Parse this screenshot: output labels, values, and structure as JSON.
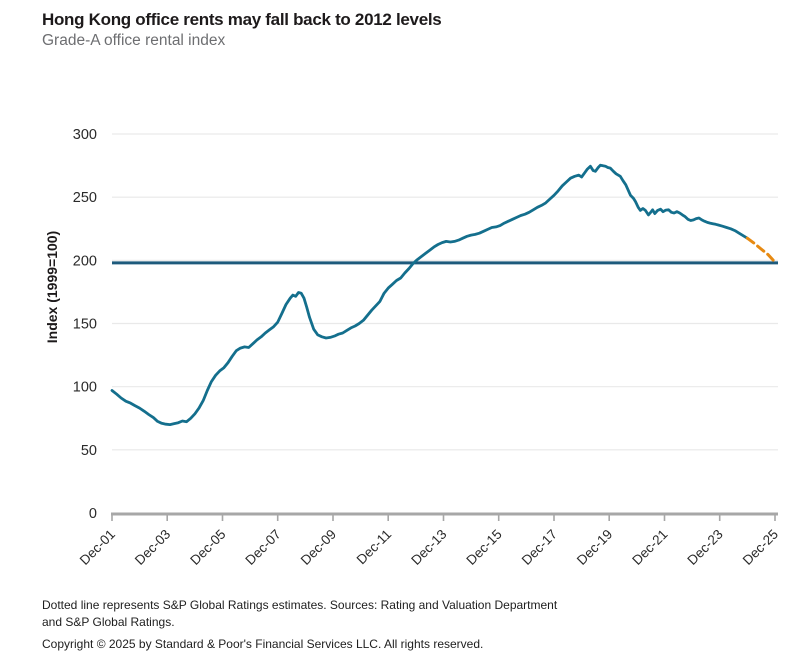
{
  "header": {
    "title": "Hong Kong office rents may fall back to 2012 levels",
    "subtitle": "Grade-A office rental index"
  },
  "footer": {
    "note_line1": "Dotted line represents S&P Global Ratings estimates. Sources: Rating and Valuation Department",
    "note_line2": "and S&P Global Ratings.",
    "copyright": "Copyright © 2025 by Standard & Poor's Financial Services LLC. All rights reserved."
  },
  "chart_data": {
    "type": "line",
    "title": "Hong Kong office rents may fall back to 2012 levels",
    "subtitle": "Grade-A office rental index",
    "xlabel": "",
    "ylabel": "Index (1999=100)",
    "ylim": [
      0,
      300
    ],
    "y_ticks": [
      0,
      50,
      100,
      150,
      200,
      250,
      300
    ],
    "xlim": [
      2001.92,
      2026.03
    ],
    "x_ticks": [
      {
        "x": 2001.92,
        "label": "Dec-01"
      },
      {
        "x": 2003.92,
        "label": "Dec-03"
      },
      {
        "x": 2005.92,
        "label": "Dec-05"
      },
      {
        "x": 2007.92,
        "label": "Dec-07"
      },
      {
        "x": 2009.92,
        "label": "Dec-09"
      },
      {
        "x": 2011.92,
        "label": "Dec-11"
      },
      {
        "x": 2013.92,
        "label": "Dec-13"
      },
      {
        "x": 2015.92,
        "label": "Dec-15"
      },
      {
        "x": 2017.92,
        "label": "Dec-17"
      },
      {
        "x": 2019.92,
        "label": "Dec-19"
      },
      {
        "x": 2021.92,
        "label": "Dec-21"
      },
      {
        "x": 2023.92,
        "label": "Dec-23"
      },
      {
        "x": 2025.92,
        "label": "Dec-25"
      }
    ],
    "grid": "horizontal",
    "legend": "none",
    "colors": {
      "grid": "#e9e9e9",
      "axis": "#a7a7a7",
      "tick_text": "#2a2a2a"
    },
    "reference_line": {
      "value": 198,
      "color": "#1d5a7c"
    },
    "series": [
      {
        "name": "rental-index",
        "style": "solid",
        "color": "#146f8d",
        "points": [
          [
            2001.92,
            97
          ],
          [
            2002.09,
            94
          ],
          [
            2002.25,
            91
          ],
          [
            2002.42,
            88.5
          ],
          [
            2002.59,
            87
          ],
          [
            2002.75,
            85
          ],
          [
            2002.92,
            83
          ],
          [
            2003.09,
            80.5
          ],
          [
            2003.25,
            78
          ],
          [
            2003.42,
            75.5
          ],
          [
            2003.57,
            72.5
          ],
          [
            2003.72,
            71
          ],
          [
            2003.87,
            70.3
          ],
          [
            2004.02,
            70
          ],
          [
            2004.17,
            70.8
          ],
          [
            2004.32,
            71.5
          ],
          [
            2004.47,
            72.8
          ],
          [
            2004.62,
            72.3
          ],
          [
            2004.77,
            75
          ],
          [
            2004.92,
            78.5
          ],
          [
            2005.07,
            83
          ],
          [
            2005.22,
            89
          ],
          [
            2005.37,
            97
          ],
          [
            2005.52,
            104
          ],
          [
            2005.67,
            109
          ],
          [
            2005.82,
            112.5
          ],
          [
            2005.97,
            115
          ],
          [
            2006.12,
            119
          ],
          [
            2006.27,
            124
          ],
          [
            2006.42,
            128.5
          ],
          [
            2006.57,
            130.5
          ],
          [
            2006.72,
            131.5
          ],
          [
            2006.87,
            131
          ],
          [
            2007.02,
            134
          ],
          [
            2007.17,
            137
          ],
          [
            2007.32,
            139.5
          ],
          [
            2007.47,
            142.5
          ],
          [
            2007.62,
            145
          ],
          [
            2007.77,
            147.5
          ],
          [
            2007.92,
            151
          ],
          [
            2008.07,
            158
          ],
          [
            2008.22,
            165
          ],
          [
            2008.37,
            170
          ],
          [
            2008.47,
            172.5
          ],
          [
            2008.57,
            171.5
          ],
          [
            2008.67,
            174.5
          ],
          [
            2008.77,
            174
          ],
          [
            2008.87,
            170
          ],
          [
            2008.97,
            163
          ],
          [
            2009.07,
            155
          ],
          [
            2009.22,
            145.5
          ],
          [
            2009.37,
            141
          ],
          [
            2009.52,
            139.5
          ],
          [
            2009.67,
            138.5
          ],
          [
            2009.82,
            139
          ],
          [
            2009.97,
            140
          ],
          [
            2010.12,
            141.5
          ],
          [
            2010.27,
            142.5
          ],
          [
            2010.42,
            144.5
          ],
          [
            2010.57,
            146.5
          ],
          [
            2010.72,
            148
          ],
          [
            2010.87,
            150
          ],
          [
            2011.02,
            152.5
          ],
          [
            2011.17,
            156.5
          ],
          [
            2011.32,
            160.5
          ],
          [
            2011.47,
            164
          ],
          [
            2011.62,
            167.5
          ],
          [
            2011.77,
            174
          ],
          [
            2011.92,
            178
          ],
          [
            2012.07,
            181
          ],
          [
            2012.22,
            184
          ],
          [
            2012.37,
            186
          ],
          [
            2012.52,
            190
          ],
          [
            2012.67,
            193.5
          ],
          [
            2012.82,
            197.5
          ],
          [
            2012.97,
            200.5
          ],
          [
            2013.12,
            203
          ],
          [
            2013.27,
            205.5
          ],
          [
            2013.42,
            208
          ],
          [
            2013.57,
            210.5
          ],
          [
            2013.72,
            212.5
          ],
          [
            2013.87,
            214
          ],
          [
            2014.02,
            215
          ],
          [
            2014.17,
            214.5
          ],
          [
            2014.32,
            215
          ],
          [
            2014.47,
            216
          ],
          [
            2014.62,
            217.5
          ],
          [
            2014.77,
            219
          ],
          [
            2014.92,
            220
          ],
          [
            2015.07,
            220.5
          ],
          [
            2015.22,
            221.5
          ],
          [
            2015.37,
            223
          ],
          [
            2015.52,
            224.5
          ],
          [
            2015.67,
            226
          ],
          [
            2015.82,
            226.5
          ],
          [
            2015.97,
            227.5
          ],
          [
            2016.12,
            229.5
          ],
          [
            2016.27,
            231
          ],
          [
            2016.42,
            232.5
          ],
          [
            2016.57,
            234
          ],
          [
            2016.72,
            235.5
          ],
          [
            2016.87,
            236.5
          ],
          [
            2017.02,
            238
          ],
          [
            2017.17,
            240
          ],
          [
            2017.32,
            242
          ],
          [
            2017.47,
            243.5
          ],
          [
            2017.62,
            245.5
          ],
          [
            2017.77,
            248.5
          ],
          [
            2017.92,
            251.5
          ],
          [
            2018.07,
            255
          ],
          [
            2018.22,
            259
          ],
          [
            2018.37,
            262
          ],
          [
            2018.52,
            265
          ],
          [
            2018.67,
            266.5
          ],
          [
            2018.82,
            267.5
          ],
          [
            2018.92,
            266
          ],
          [
            2019.02,
            269
          ],
          [
            2019.12,
            272
          ],
          [
            2019.24,
            274.5
          ],
          [
            2019.34,
            271
          ],
          [
            2019.42,
            270.5
          ],
          [
            2019.52,
            273.5
          ],
          [
            2019.6,
            275.3
          ],
          [
            2019.7,
            274.8
          ],
          [
            2019.78,
            274.5
          ],
          [
            2019.87,
            273.5
          ],
          [
            2019.96,
            273
          ],
          [
            2020.07,
            270.5
          ],
          [
            2020.17,
            268.5
          ],
          [
            2020.32,
            266.5
          ],
          [
            2020.42,
            263
          ],
          [
            2020.52,
            259.8
          ],
          [
            2020.69,
            251.5
          ],
          [
            2020.8,
            249
          ],
          [
            2020.87,
            246.5
          ],
          [
            2020.97,
            242
          ],
          [
            2021.05,
            239.5
          ],
          [
            2021.14,
            241
          ],
          [
            2021.23,
            239.5
          ],
          [
            2021.34,
            236
          ],
          [
            2021.42,
            238
          ],
          [
            2021.49,
            240
          ],
          [
            2021.57,
            237
          ],
          [
            2021.67,
            239.5
          ],
          [
            2021.78,
            240.5
          ],
          [
            2021.87,
            238.5
          ],
          [
            2021.97,
            239.8
          ],
          [
            2022.07,
            240
          ],
          [
            2022.17,
            238
          ],
          [
            2022.27,
            237.5
          ],
          [
            2022.37,
            238.5
          ],
          [
            2022.47,
            237.5
          ],
          [
            2022.57,
            236
          ],
          [
            2022.67,
            234.5
          ],
          [
            2022.77,
            232.5
          ],
          [
            2022.87,
            231.5
          ],
          [
            2022.97,
            232
          ],
          [
            2023.07,
            233
          ],
          [
            2023.17,
            233.5
          ],
          [
            2023.27,
            232
          ],
          [
            2023.37,
            231
          ],
          [
            2023.47,
            230
          ],
          [
            2023.57,
            229.5
          ],
          [
            2023.67,
            229
          ],
          [
            2023.77,
            228.5
          ],
          [
            2023.87,
            228
          ],
          [
            2024.02,
            227
          ],
          [
            2024.17,
            226
          ],
          [
            2024.32,
            225
          ],
          [
            2024.47,
            223.5
          ],
          [
            2024.62,
            221.5
          ],
          [
            2024.77,
            219.5
          ],
          [
            2024.92,
            217.5
          ]
        ]
      },
      {
        "name": "estimate",
        "style": "dashed",
        "color": "#e78a12",
        "points": [
          [
            2024.92,
            217.5
          ],
          [
            2025.17,
            213.5
          ],
          [
            2025.42,
            209
          ],
          [
            2025.67,
            204.5
          ],
          [
            2025.92,
            198.5
          ]
        ]
      }
    ]
  }
}
